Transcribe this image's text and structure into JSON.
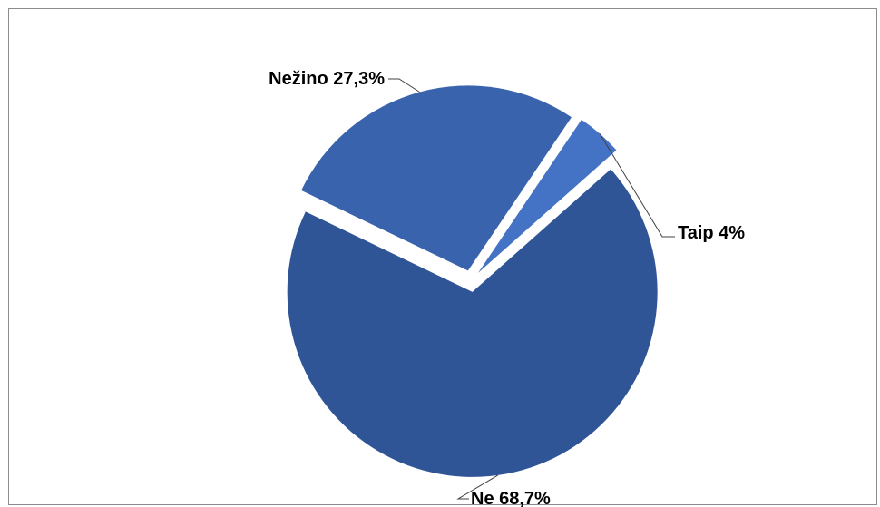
{
  "chart_data": {
    "type": "pie",
    "slices": [
      {
        "label": "Taip  4%",
        "value": 4,
        "color": "#4472c4"
      },
      {
        "label": "Ne 68,7%",
        "value": 68.7,
        "color": "#2f5597"
      },
      {
        "label": "Nežino  27,3%",
        "value": 27.3,
        "color": "#3a63ad"
      }
    ],
    "legend": "none",
    "exploded": true
  }
}
